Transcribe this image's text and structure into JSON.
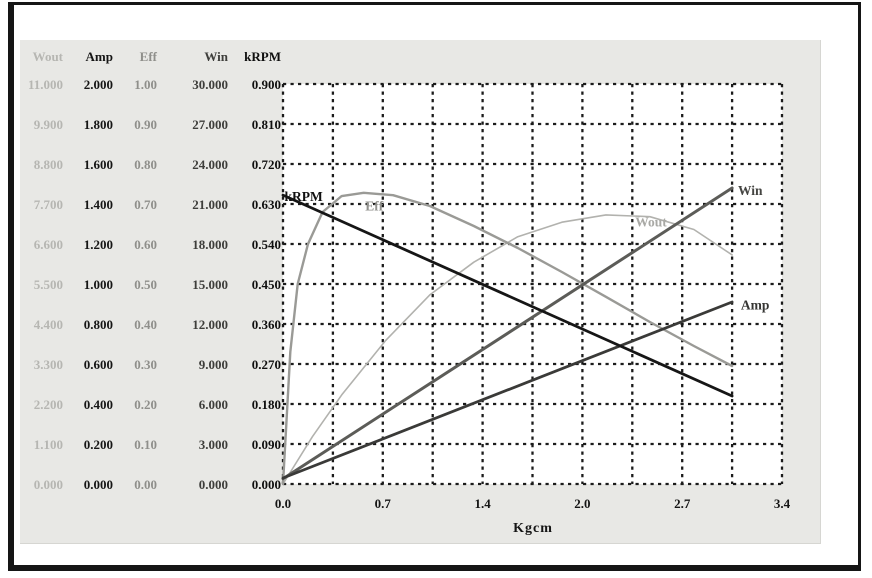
{
  "table": {
    "columns": [
      {
        "label": "Wout",
        "color": "#b6b6b2"
      },
      {
        "label": "Amp",
        "color": "#151515"
      },
      {
        "label": "Eff",
        "color": "#8f8f8b"
      },
      {
        "label": "Win",
        "color": "#3e3e3b"
      },
      {
        "label": "kRPM",
        "color": "#0f0f0f"
      }
    ],
    "rows": [
      [
        "11.000",
        "2.000",
        "1.00",
        "30.000",
        "0.900"
      ],
      [
        "9.900",
        "1.800",
        "0.90",
        "27.000",
        "0.810"
      ],
      [
        "8.800",
        "1.600",
        "0.80",
        "24.000",
        "0.720"
      ],
      [
        "7.700",
        "1.400",
        "0.70",
        "21.000",
        "0.630"
      ],
      [
        "6.600",
        "1.200",
        "0.60",
        "18.000",
        "0.540"
      ],
      [
        "5.500",
        "1.000",
        "0.50",
        "15.000",
        "0.450"
      ],
      [
        "4.400",
        "0.800",
        "0.40",
        "12.000",
        "0.360"
      ],
      [
        "3.300",
        "0.600",
        "0.30",
        "9.000",
        "0.270"
      ],
      [
        "2.200",
        "0.400",
        "0.20",
        "6.000",
        "0.180"
      ],
      [
        "1.100",
        "0.200",
        "0.10",
        "3.000",
        "0.090"
      ],
      [
        "0.000",
        "0.000",
        "0.00",
        "0.000",
        "0.000"
      ]
    ]
  },
  "chart_data": {
    "type": "line",
    "title": "",
    "xlabel": "Kgcm",
    "xlim": [
      0,
      3.4
    ],
    "x_tick_labels": [
      "0.0",
      "0.7",
      "1.4",
      "2.0",
      "2.7",
      "3.4"
    ],
    "x_tick_values": [
      0,
      0.68,
      1.36,
      2.04,
      2.72,
      3.4
    ],
    "grid": {
      "style": "dashed",
      "x_divisions": 10,
      "y_divisions": 10,
      "color": "#1b1b1b"
    },
    "y_axis_note": "Each series uses its own scale; the max of its table column aligns with the plot top. The kRPM column (0.000-0.900) doubles as the drawn y-axis labels.",
    "krpm_axis_ticks": [
      "0.900",
      "0.810",
      "0.720",
      "0.630",
      "0.540",
      "0.450",
      "0.360",
      "0.270",
      "0.180",
      "0.090",
      "0.000"
    ],
    "series": [
      {
        "name": "Wout",
        "scale_max": 11,
        "color": "#b2b2ae",
        "width": 1.6,
        "label": {
          "text": "Wout",
          "x": 2.4,
          "y": 0.591,
          "color": "#a9a9a5"
        },
        "points": [
          [
            0,
            0
          ],
          [
            0.2,
            1.3
          ],
          [
            0.4,
            2.45
          ],
          [
            0.7,
            3.95
          ],
          [
            1.0,
            5.2
          ],
          [
            1.3,
            6.1
          ],
          [
            1.6,
            6.8
          ],
          [
            1.9,
            7.2
          ],
          [
            2.2,
            7.4
          ],
          [
            2.5,
            7.35
          ],
          [
            2.8,
            7.0
          ],
          [
            3.06,
            6.3
          ]
        ]
      },
      {
        "name": "Eff",
        "scale_max": 1,
        "color": "#9a9a96",
        "width": 2.4,
        "label": {
          "text": "Eff",
          "x": 0.56,
          "y": 0.627,
          "color": "#90908c"
        },
        "points": [
          [
            0,
            0
          ],
          [
            0.05,
            0.33
          ],
          [
            0.1,
            0.5
          ],
          [
            0.17,
            0.6
          ],
          [
            0.27,
            0.68
          ],
          [
            0.4,
            0.72
          ],
          [
            0.55,
            0.728
          ],
          [
            0.75,
            0.722
          ],
          [
            1.0,
            0.695
          ],
          [
            1.3,
            0.645
          ],
          [
            1.6,
            0.59
          ],
          [
            1.9,
            0.53
          ],
          [
            2.2,
            0.468
          ],
          [
            2.5,
            0.405
          ],
          [
            2.8,
            0.345
          ],
          [
            3.06,
            0.295
          ]
        ]
      },
      {
        "name": "Win",
        "scale_max": 30,
        "color": "#5c5c58",
        "width": 3,
        "label": {
          "text": "Win",
          "x": 3.1,
          "y": 0.662,
          "color": "#454542"
        },
        "points": [
          [
            0,
            0.4
          ],
          [
            3.06,
            22.2
          ]
        ]
      },
      {
        "name": "Amp",
        "scale_max": 2,
        "color": "#3a3a38",
        "width": 2.8,
        "label": {
          "text": "Amp",
          "x": 3.12,
          "y": 0.404,
          "color": "#353533"
        },
        "points": [
          [
            0,
            0.03
          ],
          [
            3.06,
            0.91
          ]
        ]
      },
      {
        "name": "kRPM",
        "scale_max": 0.9,
        "color": "#161616",
        "width": 2.8,
        "label": {
          "text": "kRPM",
          "x": 0.01,
          "y": 0.648,
          "color": "#111111"
        },
        "points": [
          [
            0,
            0.65
          ],
          [
            3.06,
            0.198
          ]
        ]
      }
    ]
  }
}
